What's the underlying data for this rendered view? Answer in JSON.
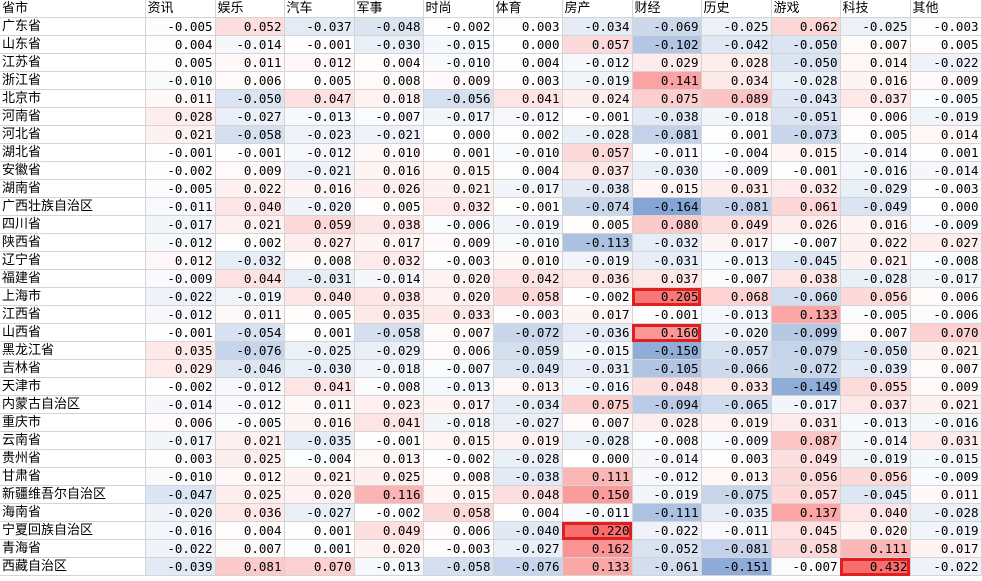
{
  "headers": [
    "省市",
    "资讯",
    "娱乐",
    "汽车",
    "军事",
    "时尚",
    "体育",
    "房产",
    "财经",
    "历史",
    "游戏",
    "科技",
    "其他"
  ],
  "rows": [
    {
      "region": "广东省",
      "values": [
        "-0.005",
        "0.052",
        "-0.037",
        "-0.048",
        "-0.002",
        "0.003",
        "-0.034",
        "-0.069",
        "-0.025",
        "0.062",
        "-0.025",
        "-0.003"
      ]
    },
    {
      "region": "山东省",
      "values": [
        "0.004",
        "-0.014",
        "-0.001",
        "-0.030",
        "-0.015",
        "0.000",
        "0.057",
        "-0.102",
        "-0.042",
        "-0.050",
        "0.007",
        "0.005"
      ]
    },
    {
      "region": "江苏省",
      "values": [
        "0.005",
        "0.011",
        "0.012",
        "0.004",
        "-0.010",
        "0.004",
        "-0.012",
        "0.029",
        "0.028",
        "-0.050",
        "0.014",
        "-0.022"
      ]
    },
    {
      "region": "浙江省",
      "values": [
        "-0.010",
        "0.006",
        "0.005",
        "0.008",
        "0.009",
        "0.003",
        "-0.019",
        "0.141",
        "0.034",
        "-0.028",
        "0.016",
        "0.009"
      ]
    },
    {
      "region": "北京市",
      "values": [
        "0.011",
        "-0.050",
        "0.047",
        "0.018",
        "-0.056",
        "0.041",
        "0.024",
        "0.075",
        "0.089",
        "-0.043",
        "0.037",
        "-0.005"
      ]
    },
    {
      "region": "河南省",
      "values": [
        "0.028",
        "-0.027",
        "-0.013",
        "-0.007",
        "-0.017",
        "-0.012",
        "-0.001",
        "-0.038",
        "-0.018",
        "-0.051",
        "0.006",
        "-0.019"
      ]
    },
    {
      "region": "河北省",
      "values": [
        "0.021",
        "-0.058",
        "-0.023",
        "-0.021",
        "0.000",
        "0.002",
        "-0.028",
        "-0.081",
        "0.001",
        "-0.073",
        "0.005",
        "0.014"
      ]
    },
    {
      "region": "湖北省",
      "values": [
        "-0.001",
        "-0.001",
        "-0.012",
        "0.010",
        "0.001",
        "-0.010",
        "0.057",
        "-0.011",
        "-0.004",
        "0.015",
        "-0.014",
        "0.001"
      ]
    },
    {
      "region": "安徽省",
      "values": [
        "-0.002",
        "0.009",
        "-0.021",
        "0.016",
        "0.015",
        "0.004",
        "0.037",
        "-0.030",
        "-0.009",
        "-0.001",
        "-0.016",
        "-0.014"
      ]
    },
    {
      "region": "湖南省",
      "values": [
        "-0.005",
        "0.022",
        "0.016",
        "0.026",
        "0.021",
        "-0.017",
        "-0.038",
        "0.015",
        "0.031",
        "0.032",
        "-0.029",
        "-0.003"
      ]
    },
    {
      "region": "广西壮族自治区",
      "values": [
        "-0.011",
        "0.040",
        "-0.020",
        "0.005",
        "0.032",
        "-0.001",
        "-0.074",
        "-0.164",
        "-0.081",
        "0.061",
        "-0.049",
        "0.000"
      ]
    },
    {
      "region": "四川省",
      "values": [
        "-0.017",
        "0.021",
        "0.059",
        "0.038",
        "-0.006",
        "-0.019",
        "0.005",
        "0.080",
        "0.049",
        "0.026",
        "0.016",
        "-0.009"
      ]
    },
    {
      "region": "陕西省",
      "values": [
        "-0.012",
        "0.002",
        "0.027",
        "0.017",
        "0.009",
        "-0.010",
        "-0.113",
        "-0.032",
        "0.017",
        "-0.007",
        "0.022",
        "0.027"
      ]
    },
    {
      "region": "辽宁省",
      "values": [
        "0.012",
        "-0.032",
        "0.008",
        "0.032",
        "-0.003",
        "0.010",
        "-0.019",
        "-0.031",
        "-0.013",
        "-0.045",
        "0.021",
        "-0.008"
      ]
    },
    {
      "region": "福建省",
      "values": [
        "-0.009",
        "0.044",
        "-0.031",
        "-0.014",
        "0.020",
        "0.042",
        "0.036",
        "0.037",
        "-0.007",
        "0.038",
        "-0.028",
        "-0.017"
      ]
    },
    {
      "region": "上海市",
      "values": [
        "-0.022",
        "-0.019",
        "0.040",
        "0.038",
        "0.020",
        "0.058",
        "-0.002",
        "0.205",
        "0.068",
        "-0.060",
        "0.056",
        "0.006"
      ]
    },
    {
      "region": "江西省",
      "values": [
        "-0.012",
        "0.011",
        "0.005",
        "0.035",
        "0.033",
        "-0.003",
        "0.017",
        "-0.001",
        "-0.013",
        "0.133",
        "-0.005",
        "-0.006"
      ]
    },
    {
      "region": "山西省",
      "values": [
        "-0.001",
        "-0.054",
        "0.001",
        "-0.058",
        "0.007",
        "-0.072",
        "-0.036",
        "0.160",
        "-0.020",
        "-0.099",
        "0.007",
        "0.070"
      ]
    },
    {
      "region": "黑龙江省",
      "values": [
        "0.035",
        "-0.076",
        "-0.025",
        "-0.029",
        "0.006",
        "-0.059",
        "-0.015",
        "-0.150",
        "-0.057",
        "-0.079",
        "-0.050",
        "0.021"
      ]
    },
    {
      "region": "吉林省",
      "values": [
        "0.029",
        "-0.046",
        "-0.030",
        "-0.018",
        "-0.007",
        "-0.049",
        "-0.031",
        "-0.105",
        "-0.066",
        "-0.072",
        "-0.039",
        "0.007"
      ]
    },
    {
      "region": "天津市",
      "values": [
        "-0.002",
        "-0.012",
        "0.041",
        "-0.008",
        "-0.013",
        "0.013",
        "-0.016",
        "0.048",
        "0.033",
        "-0.149",
        "0.055",
        "0.009"
      ]
    },
    {
      "region": "内蒙古自治区",
      "values": [
        "-0.014",
        "-0.012",
        "0.011",
        "0.023",
        "0.017",
        "-0.034",
        "0.075",
        "-0.094",
        "-0.065",
        "-0.017",
        "0.037",
        "0.021"
      ]
    },
    {
      "region": "重庆市",
      "values": [
        "0.006",
        "-0.005",
        "0.016",
        "0.041",
        "-0.018",
        "-0.027",
        "0.007",
        "0.028",
        "0.019",
        "0.031",
        "-0.013",
        "-0.016"
      ]
    },
    {
      "region": "云南省",
      "values": [
        "-0.017",
        "0.021",
        "-0.035",
        "-0.001",
        "0.015",
        "0.019",
        "-0.028",
        "-0.008",
        "-0.009",
        "0.087",
        "-0.014",
        "0.031"
      ]
    },
    {
      "region": "贵州省",
      "values": [
        "0.003",
        "0.025",
        "-0.004",
        "0.013",
        "-0.002",
        "-0.028",
        "0.000",
        "-0.014",
        "0.003",
        "0.049",
        "-0.019",
        "-0.015"
      ]
    },
    {
      "region": "甘肃省",
      "values": [
        "-0.010",
        "0.012",
        "0.021",
        "0.025",
        "0.008",
        "-0.038",
        "0.111",
        "-0.012",
        "0.013",
        "0.056",
        "0.056",
        "-0.009"
      ]
    },
    {
      "region": "新疆维吾尔自治区",
      "values": [
        "-0.047",
        "0.025",
        "0.020",
        "0.116",
        "0.015",
        "0.048",
        "0.150",
        "-0.019",
        "-0.075",
        "0.057",
        "-0.045",
        "0.011"
      ]
    },
    {
      "region": "海南省",
      "values": [
        "-0.020",
        "0.036",
        "-0.027",
        "-0.002",
        "0.058",
        "0.004",
        "-0.011",
        "-0.111",
        "-0.035",
        "0.137",
        "0.040",
        "-0.028"
      ]
    },
    {
      "region": "宁夏回族自治区",
      "values": [
        "-0.016",
        "0.004",
        "0.001",
        "0.049",
        "0.006",
        "-0.040",
        "0.220",
        "-0.022",
        "-0.011",
        "0.045",
        "0.020",
        "-0.019"
      ]
    },
    {
      "region": "青海省",
      "values": [
        "-0.022",
        "0.007",
        "0.001",
        "0.020",
        "-0.003",
        "-0.027",
        "0.162",
        "-0.052",
        "-0.081",
        "0.058",
        "0.111",
        "0.017"
      ]
    },
    {
      "region": "西藏自治区",
      "values": [
        "-0.039",
        "0.081",
        "0.070",
        "-0.013",
        "-0.058",
        "-0.076",
        "0.133",
        "-0.061",
        "-0.151",
        "-0.007",
        "0.432",
        "-0.022"
      ]
    }
  ],
  "highlights": [
    {
      "row": 15,
      "col": 7
    },
    {
      "row": 17,
      "col": 7
    },
    {
      "row": 28,
      "col": 6
    },
    {
      "row": 30,
      "col": 10
    }
  ],
  "colors": {
    "positive": "#f86a6a",
    "negative": "#5b86c5",
    "highlight_border": "#e02020"
  }
}
